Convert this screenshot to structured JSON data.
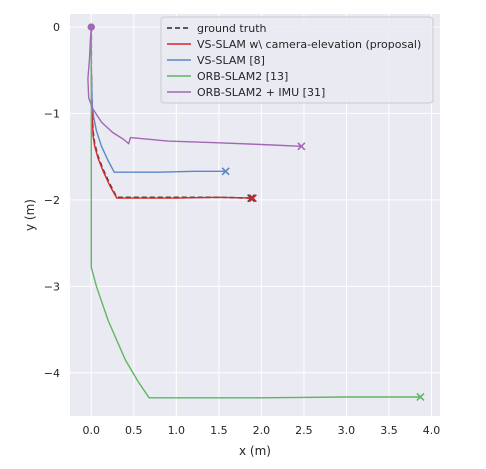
{
  "chart_data": {
    "type": "line",
    "title": "",
    "xlabel": "x (m)",
    "ylabel": "y (m)",
    "xlim": [
      -0.25,
      4.1
    ],
    "ylim": [
      -4.5,
      0.15
    ],
    "xticks": [
      "0.0",
      "0.5",
      "1.0",
      "1.5",
      "2.0",
      "2.5",
      "3.0",
      "3.5",
      "4.0"
    ],
    "yticks": [
      "0",
      "−1",
      "−2",
      "−3",
      "−4"
    ],
    "grid": true,
    "background": "#eaeaf2",
    "legend_position": "top-right",
    "series": [
      {
        "name": "ground truth",
        "color": "#444444",
        "dashed": true,
        "x": [
          0.0,
          0.0,
          0.01,
          0.02,
          0.04,
          0.08,
          0.14,
          0.22,
          0.3,
          0.33,
          1.0,
          1.5,
          1.88
        ],
        "y": [
          0.0,
          -0.5,
          -0.95,
          -1.2,
          -1.35,
          -1.5,
          -1.65,
          -1.82,
          -1.97,
          -1.97,
          -1.97,
          -1.97,
          -1.98
        ]
      },
      {
        "name": "VS-SLAM w\\ camera-elevation (proposal)",
        "color": "#d62728",
        "dashed": false,
        "x": [
          0.0,
          0.0,
          0.01,
          0.02,
          0.04,
          0.08,
          0.14,
          0.22,
          0.3,
          0.34,
          1.0,
          1.5,
          1.9
        ],
        "y": [
          0.0,
          -0.5,
          -0.95,
          -1.25,
          -1.38,
          -1.52,
          -1.67,
          -1.84,
          -1.98,
          -1.98,
          -1.98,
          -1.97,
          -1.98
        ]
      },
      {
        "name": "VS-SLAM [8]",
        "color": "#5a87c5",
        "dashed": false,
        "x": [
          0.0,
          0.0,
          0.01,
          0.03,
          0.06,
          0.12,
          0.2,
          0.27,
          0.8,
          1.2,
          1.58
        ],
        "y": [
          0.0,
          -0.5,
          -0.9,
          -1.05,
          -1.2,
          -1.38,
          -1.55,
          -1.68,
          -1.68,
          -1.67,
          -1.67
        ]
      },
      {
        "name": "ORB-SLAM2 [13]",
        "color": "#5fb760",
        "dashed": false,
        "x": [
          0.0,
          0.0,
          0.0,
          0.0,
          0.0,
          0.06,
          0.2,
          0.4,
          0.55,
          0.68,
          1.0,
          2.0,
          3.0,
          3.87
        ],
        "y": [
          0.0,
          -0.15,
          -1.0,
          -2.0,
          -2.78,
          -3.0,
          -3.4,
          -3.85,
          -4.1,
          -4.29,
          -4.29,
          -4.29,
          -4.28,
          -4.28
        ]
      },
      {
        "name": "ORB-SLAM2 + IMU [31]",
        "color": "#a566b8",
        "dashed": false,
        "x": [
          0.0,
          -0.01,
          -0.02,
          -0.04,
          -0.03,
          0.02,
          0.12,
          0.25,
          0.38,
          0.44,
          0.46,
          0.9,
          1.5,
          2.0,
          2.47
        ],
        "y": [
          0.0,
          -0.15,
          -0.35,
          -0.6,
          -0.82,
          -0.95,
          -1.1,
          -1.22,
          -1.3,
          -1.35,
          -1.28,
          -1.32,
          -1.34,
          -1.36,
          -1.38
        ]
      }
    ]
  }
}
